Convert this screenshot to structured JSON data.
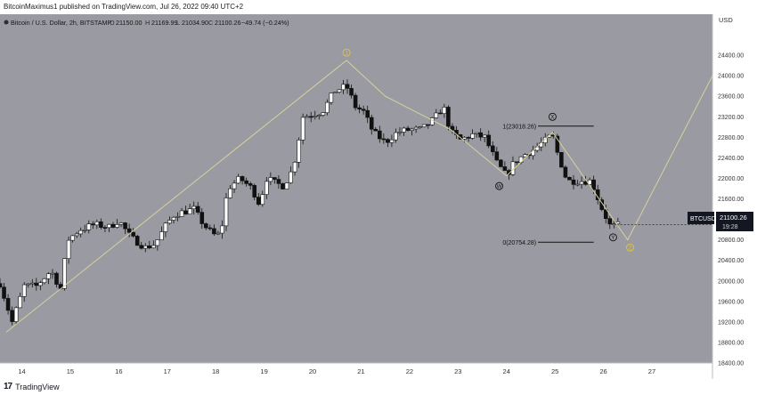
{
  "header": {
    "published": "BitcoinMaximus1 published on TradingView.com, Jul 26, 2022 09:40 UTC+2"
  },
  "footer": {
    "logo_text": "TradingView"
  },
  "legend": {
    "symbol": "Bitcoin / U.S. Dollar, 2h, BITSTAMP",
    "o_label": "O",
    "o": "21150.00",
    "h_label": "H",
    "h": "21169.99",
    "l_label": "L",
    "l": "21034.90",
    "c_label": "C",
    "c": "21100.26",
    "change": "−49.74 (−0.24%)"
  },
  "price_axis": {
    "currency": "USD"
  },
  "price_badge": {
    "symbol": "BTCUSD",
    "price": "21100.26",
    "countdown": "19:28"
  },
  "colors": {
    "background": "#9a9ba2",
    "up": "#ffffff",
    "down": "#111111",
    "wave": "#d8d19a",
    "label_yellow": "#e3c43a"
  },
  "chart_data": {
    "type": "candlestick",
    "xlim": [
      13.55,
      28.25
    ],
    "ylim": [
      18400,
      25200
    ],
    "x_ticks": [
      14,
      15,
      16,
      17,
      18,
      19,
      20,
      21,
      22,
      23,
      24,
      25,
      26,
      27
    ],
    "y_ticks": [
      18400,
      18800,
      19200,
      19600,
      20000,
      20400,
      20800,
      21200,
      21600,
      22000,
      22400,
      22800,
      23200,
      23600,
      24000,
      24400
    ],
    "close_path": [
      [
        13.55,
        19950
      ],
      [
        13.8,
        19200
      ],
      [
        14.05,
        19900
      ],
      [
        14.3,
        19900
      ],
      [
        14.6,
        20200
      ],
      [
        14.8,
        19850
      ],
      [
        14.95,
        20800
      ],
      [
        15.2,
        21000
      ],
      [
        15.5,
        21100
      ],
      [
        15.8,
        21050
      ],
      [
        16.0,
        21180
      ],
      [
        16.25,
        20850
      ],
      [
        16.55,
        20650
      ],
      [
        16.75,
        20720
      ],
      [
        16.95,
        21050
      ],
      [
        17.15,
        21300
      ],
      [
        17.35,
        21350
      ],
      [
        17.55,
        21400
      ],
      [
        17.75,
        21100
      ],
      [
        17.95,
        20900
      ],
      [
        18.1,
        20900
      ],
      [
        18.25,
        21800
      ],
      [
        18.5,
        22000
      ],
      [
        18.75,
        21800
      ],
      [
        18.9,
        21500
      ],
      [
        19.05,
        22000
      ],
      [
        19.25,
        21900
      ],
      [
        19.4,
        21850
      ],
      [
        19.6,
        22200
      ],
      [
        19.8,
        23200
      ],
      [
        20.0,
        23250
      ],
      [
        20.2,
        23300
      ],
      [
        20.45,
        23700
      ],
      [
        20.7,
        23800
      ],
      [
        20.88,
        23400
      ],
      [
        21.05,
        23300
      ],
      [
        21.25,
        22900
      ],
      [
        21.5,
        22700
      ],
      [
        21.75,
        22900
      ],
      [
        22.0,
        22950
      ],
      [
        22.25,
        22950
      ],
      [
        22.5,
        23150
      ],
      [
        22.7,
        23400
      ],
      [
        22.85,
        22900
      ],
      [
        23.05,
        22750
      ],
      [
        23.3,
        22850
      ],
      [
        23.55,
        22800
      ],
      [
        23.8,
        22300
      ],
      [
        24.0,
        22050
      ],
      [
        24.15,
        22300
      ],
      [
        24.35,
        22450
      ],
      [
        24.55,
        22550
      ],
      [
        24.75,
        22700
      ],
      [
        24.95,
        22850
      ],
      [
        25.05,
        22500
      ],
      [
        25.25,
        21950
      ],
      [
        25.5,
        21950
      ],
      [
        25.75,
        21950
      ],
      [
        25.95,
        21450
      ],
      [
        26.15,
        21050
      ],
      [
        26.35,
        21100
      ]
    ],
    "wave_path": [
      [
        13.68,
        19000
      ],
      [
        20.7,
        24300
      ],
      [
        21.5,
        23600
      ],
      [
        22.85,
        22950
      ],
      [
        24.0,
        22050
      ],
      [
        24.95,
        22900
      ],
      [
        26.5,
        20800
      ],
      [
        28.25,
        24000
      ]
    ],
    "wave_labels": [
      {
        "text": "1",
        "x": 20.7,
        "y": 24450,
        "style": "circle-yellow"
      },
      {
        "text": "2",
        "x": 26.55,
        "y": 20650,
        "style": "circle-yellow"
      },
      {
        "text": "W",
        "x": 23.85,
        "y": 21850,
        "style": "circle-dark"
      },
      {
        "text": "X",
        "x": 24.95,
        "y": 23200,
        "style": "circle-dark"
      },
      {
        "text": "Y",
        "x": 26.2,
        "y": 20850,
        "style": "circle-dark"
      }
    ],
    "fib_levels": [
      {
        "label": "1(23018.26)",
        "price": 23018.26,
        "x0": 24.65,
        "x1": 25.8
      },
      {
        "label": "0(20754.28)",
        "price": 20754.28,
        "x0": 24.65,
        "x1": 25.8
      }
    ],
    "last_price": 21100.26
  }
}
